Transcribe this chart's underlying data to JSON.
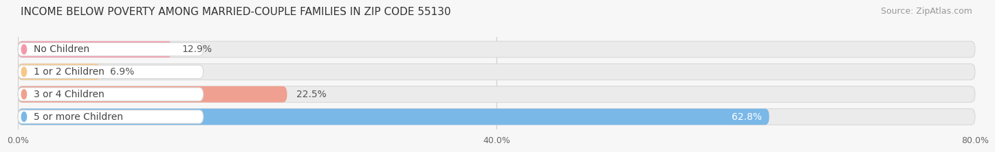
{
  "title": "INCOME BELOW POVERTY AMONG MARRIED-COUPLE FAMILIES IN ZIP CODE 55130",
  "source": "Source: ZipAtlas.com",
  "categories": [
    "No Children",
    "1 or 2 Children",
    "3 or 4 Children",
    "5 or more Children"
  ],
  "values": [
    12.9,
    6.9,
    22.5,
    62.8
  ],
  "bar_colors": [
    "#f599aa",
    "#f5c98a",
    "#f0a090",
    "#7ab8e8"
  ],
  "value_labels": [
    "12.9%",
    "6.9%",
    "22.5%",
    "62.8%"
  ],
  "xlim": [
    0,
    80
  ],
  "xticks": [
    0.0,
    40.0,
    80.0
  ],
  "xtick_labels": [
    "0.0%",
    "40.0%",
    "80.0%"
  ],
  "background_color": "#f7f7f7",
  "bar_background_color": "#ebebeb",
  "bar_edge_color": "#d8d8d8",
  "title_fontsize": 11,
  "source_fontsize": 9,
  "label_fontsize": 10,
  "value_fontsize": 10
}
